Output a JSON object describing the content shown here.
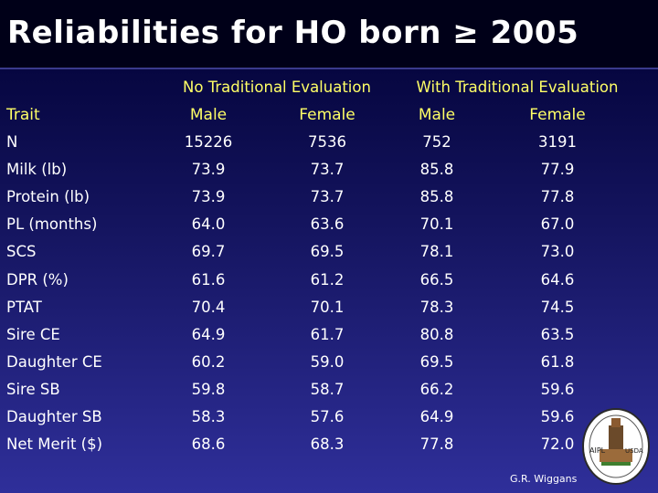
{
  "title": "Reliabilities for HO born ≥ 2005",
  "groups": {
    "no_trad": "No Traditional Evaluation",
    "with_trad": "With Traditional Evaluation"
  },
  "columns": {
    "trait": "Trait",
    "male1": "Male",
    "female1": "Female",
    "male2": "Male",
    "female2": "Female"
  },
  "rows": [
    {
      "trait": "N",
      "v": [
        "15226",
        "7536",
        "752",
        "3191"
      ]
    },
    {
      "trait": "Milk (lb)",
      "v": [
        "73.9",
        "73.7",
        "85.8",
        "77.9"
      ]
    },
    {
      "trait": "Protein (lb)",
      "v": [
        "73.9",
        "73.7",
        "85.8",
        "77.8"
      ]
    },
    {
      "trait": "PL (months)",
      "v": [
        "64.0",
        "63.6",
        "70.1",
        "67.0"
      ]
    },
    {
      "trait": "SCS",
      "v": [
        "69.7",
        "69.5",
        "78.1",
        "73.0"
      ]
    },
    {
      "trait": "DPR (%)",
      "v": [
        "61.6",
        "61.2",
        "66.5",
        "64.6"
      ]
    },
    {
      "trait": "PTAT",
      "v": [
        "70.4",
        "70.1",
        "78.3",
        "74.5"
      ]
    },
    {
      "trait": "Sire CE",
      "v": [
        "64.9",
        "61.7",
        "80.8",
        "63.5"
      ]
    },
    {
      "trait": "Daughter CE",
      "v": [
        "60.2",
        "59.0",
        "69.5",
        "61.8"
      ]
    },
    {
      "trait": "Sire SB",
      "v": [
        "59.8",
        "58.7",
        "66.2",
        "59.6"
      ]
    },
    {
      "trait": "Daughter SB",
      "v": [
        "58.3",
        "57.6",
        "64.9",
        "59.6"
      ]
    },
    {
      "trait": "Net Merit ($)",
      "v": [
        "68.6",
        "68.3",
        "77.8",
        "72.0"
      ]
    }
  ],
  "logo": {
    "icon": "usda-aipl-seal-icon",
    "text_left": "AIPL",
    "text_right": "USDA"
  },
  "credit": "G.R. Wiggans"
}
